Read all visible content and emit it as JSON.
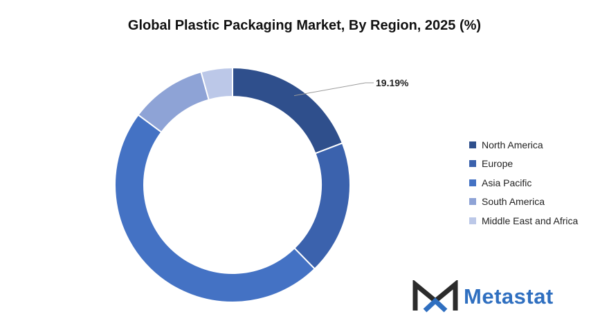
{
  "chart_data": {
    "type": "donut",
    "title": "Global Plastic Packaging Market, By Region, 2025 (%)",
    "categories": [
      "North America",
      "Europe",
      "Asia Pacific",
      "South America",
      "Middle East and Africa"
    ],
    "values": [
      19.19,
      18.5,
      47.5,
      10.5,
      4.31
    ],
    "colors": [
      "#2f4f8c",
      "#3b62ad",
      "#4472c4",
      "#8ea3d6",
      "#bcc8e8"
    ],
    "data_labels": [
      {
        "category": "North America",
        "text": "19.19%"
      }
    ],
    "legend_position": "right"
  },
  "brand": {
    "name": "Metastat",
    "logo_icon": "metastat-m-logo"
  }
}
